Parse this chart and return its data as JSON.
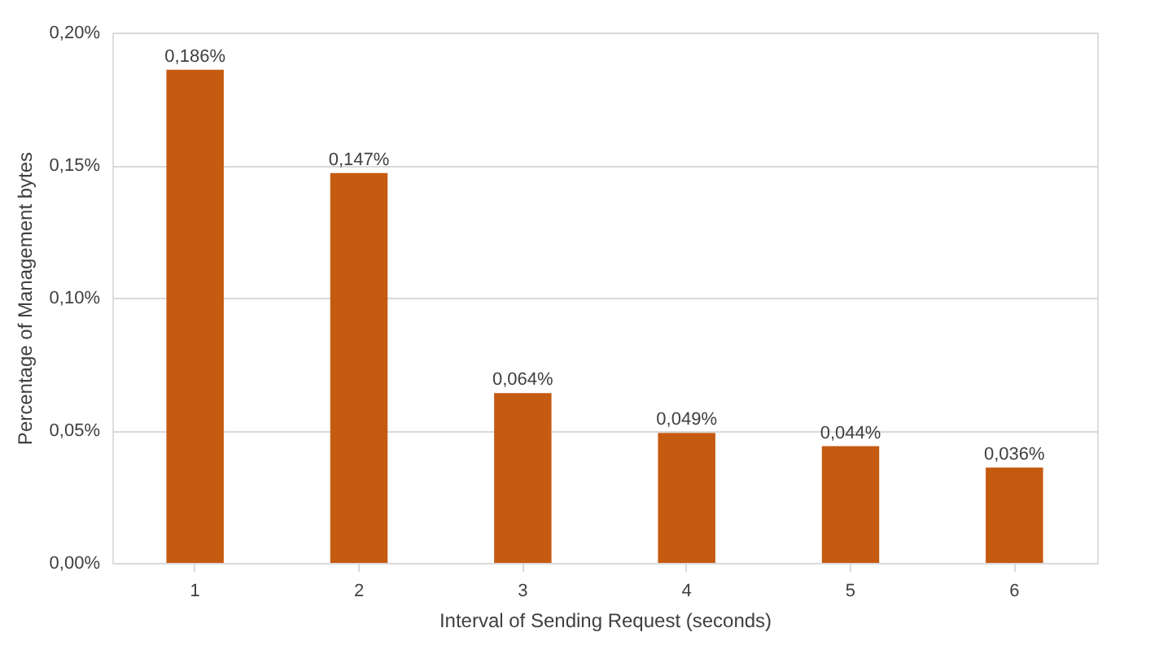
{
  "chart_data": {
    "type": "bar",
    "xlabel": "Interval of Sending Request (seconds)",
    "ylabel": "Percentage of Management bytes",
    "categories": [
      "1",
      "2",
      "3",
      "4",
      "5",
      "6"
    ],
    "series": [
      {
        "color": "#c55a11",
        "values": [
          0.186,
          0.147,
          0.064,
          0.049,
          0.044,
          0.036
        ],
        "value_labels": [
          "0,186%",
          "0,147%",
          "0,064%",
          "0,049%",
          "0,044%",
          "0,036%"
        ]
      }
    ],
    "ylim": [
      0,
      0.2
    ],
    "yticks": [
      {
        "value": 0,
        "label": "0,00%"
      },
      {
        "value": 0.05,
        "label": "0,05%"
      },
      {
        "value": 0.1,
        "label": "0,10%"
      },
      {
        "value": 0.15,
        "label": "0,15%"
      },
      {
        "value": 0.2,
        "label": "0,20%"
      }
    ],
    "grid": "y",
    "legend": false
  }
}
